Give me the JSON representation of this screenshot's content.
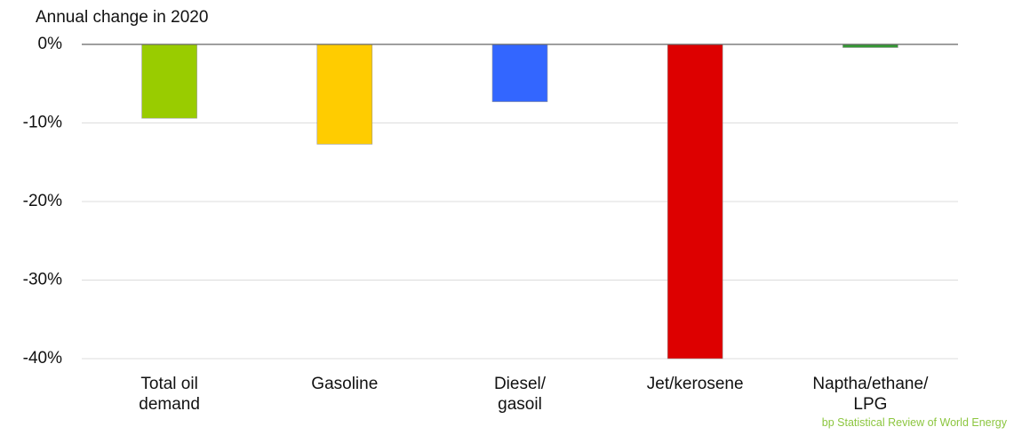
{
  "chart_data": {
    "type": "bar",
    "title": "Annual change in 2020",
    "categories": [
      "Total oil\ndemand",
      "Gasoline",
      "Diesel/\ngasoil",
      "Jet/kerosene",
      "Naptha/ethane/\nLPG"
    ],
    "values": [
      -9.4,
      -12.7,
      -7.3,
      -40,
      -0.4
    ],
    "colors": [
      "#99cc00",
      "#ffcc00",
      "#3366ff",
      "#dd0000",
      "#339933"
    ],
    "ylim": [
      -40,
      0
    ],
    "yticks": [
      {
        "value": 0,
        "label": "0%"
      },
      {
        "value": -10,
        "label": "-10%"
      },
      {
        "value": -20,
        "label": "-20%"
      },
      {
        "value": -30,
        "label": "-30%"
      },
      {
        "value": -40,
        "label": "-40%"
      }
    ],
    "grid": true,
    "source": "bp Statistical Review of World Energy"
  }
}
